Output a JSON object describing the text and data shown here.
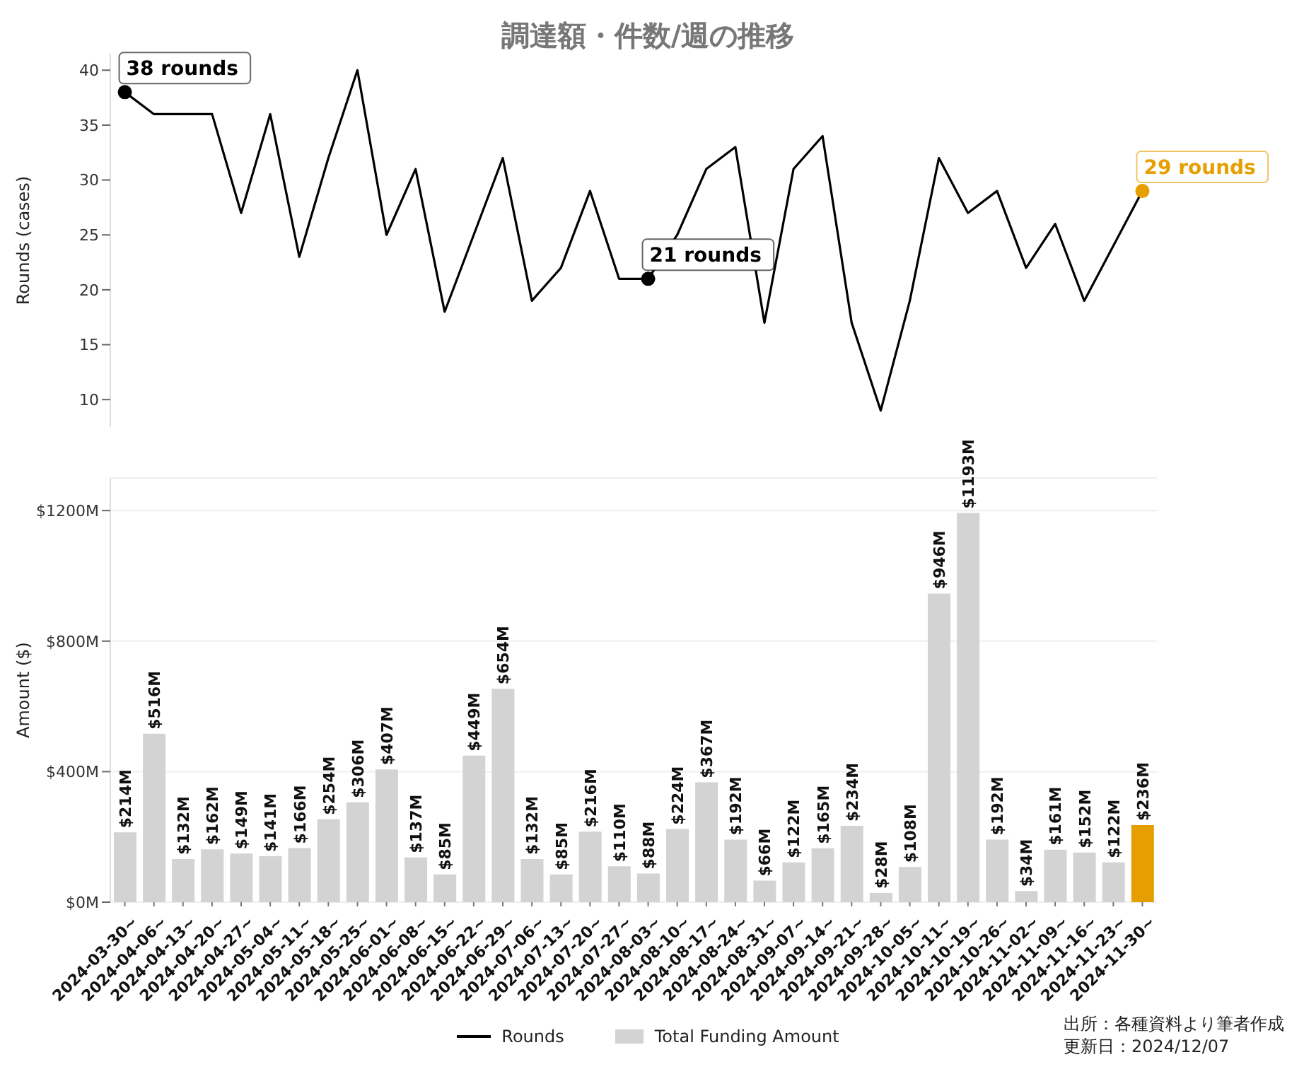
{
  "chart_data": [
    {
      "type": "line",
      "title": "調達額・件数/週の推移",
      "ylabel": "Rounds (cases)",
      "categories": [
        "2024-03-30~",
        "2024-04-06~",
        "2024-04-13~",
        "2024-04-20~",
        "2024-04-27~",
        "2024-05-04~",
        "2024-05-11~",
        "2024-05-18~",
        "2024-05-25~",
        "2024-06-01~",
        "2024-06-08~",
        "2024-06-15~",
        "2024-06-22~",
        "2024-06-29~",
        "2024-07-06~",
        "2024-07-13~",
        "2024-07-20~",
        "2024-07-27~",
        "2024-08-03~",
        "2024-08-10~",
        "2024-08-17~",
        "2024-08-24~",
        "2024-08-31~",
        "2024-09-07~",
        "2024-09-14~",
        "2024-09-21~",
        "2024-09-28~",
        "2024-10-05~",
        "2024-10-11~",
        "2024-10-19~",
        "2024-10-26~",
        "2024-11-02~",
        "2024-11-09~",
        "2024-11-16~",
        "2024-11-23~",
        "2024-11-30~"
      ],
      "series": [
        {
          "name": "Rounds",
          "color": "#000000",
          "values": [
            38,
            36,
            36,
            36,
            27,
            36,
            23,
            32,
            40,
            25,
            31,
            18,
            25,
            32,
            19,
            22,
            29,
            21,
            21,
            25,
            31,
            33,
            17,
            31,
            34,
            17,
            9,
            19,
            32,
            27,
            29,
            22,
            26,
            19,
            24,
            29
          ]
        }
      ],
      "ylim": [
        7.5,
        41.5
      ],
      "yticks": [
        10,
        15,
        20,
        25,
        30,
        35,
        40
      ],
      "tick_labels": "y",
      "grid": false,
      "marker": "none",
      "line_style": "solid",
      "legend": "bottom",
      "annotations": [
        {
          "text": "38 rounds",
          "x": "2024-03-30~",
          "y": 38
        },
        {
          "text": "21 rounds",
          "x": "2024-08-03~",
          "y": 21
        },
        {
          "text": "29 rounds",
          "x": "2024-11-30~",
          "y": 29
        }
      ]
    },
    {
      "type": "bar",
      "ylabel": "Amount ($)",
      "categories": [
        "2024-03-30~",
        "2024-04-06~",
        "2024-04-13~",
        "2024-04-20~",
        "2024-04-27~",
        "2024-05-04~",
        "2024-05-11~",
        "2024-05-18~",
        "2024-05-25~",
        "2024-06-01~",
        "2024-06-08~",
        "2024-06-15~",
        "2024-06-22~",
        "2024-06-29~",
        "2024-07-06~",
        "2024-07-13~",
        "2024-07-20~",
        "2024-07-27~",
        "2024-08-03~",
        "2024-08-10~",
        "2024-08-17~",
        "2024-08-24~",
        "2024-08-31~",
        "2024-09-07~",
        "2024-09-14~",
        "2024-09-21~",
        "2024-09-28~",
        "2024-10-05~",
        "2024-10-11~",
        "2024-10-19~",
        "2024-10-26~",
        "2024-11-02~",
        "2024-11-09~",
        "2024-11-16~",
        "2024-11-23~",
        "2024-11-30~"
      ],
      "series": [
        {
          "name": "Total Funding Amount",
          "color": "#d3d3d3",
          "colors": [
            "#d3d3d3",
            "#d3d3d3",
            "#d3d3d3",
            "#d3d3d3",
            "#d3d3d3",
            "#d3d3d3",
            "#d3d3d3",
            "#d3d3d3",
            "#d3d3d3",
            "#d3d3d3",
            "#d3d3d3",
            "#d3d3d3",
            "#d3d3d3",
            "#d3d3d3",
            "#d3d3d3",
            "#d3d3d3",
            "#d3d3d3",
            "#d3d3d3",
            "#d3d3d3",
            "#d3d3d3",
            "#d3d3d3",
            "#d3d3d3",
            "#d3d3d3",
            "#d3d3d3",
            "#d3d3d3",
            "#d3d3d3",
            "#d3d3d3",
            "#d3d3d3",
            "#d3d3d3",
            "#d3d3d3",
            "#d3d3d3",
            "#d3d3d3",
            "#d3d3d3",
            "#d3d3d3",
            "#d3d3d3",
            "#e69f00"
          ],
          "values": [
            214,
            516,
            132,
            162,
            149,
            141,
            166,
            254,
            306,
            407,
            137,
            85,
            449,
            654,
            132,
            85,
            216,
            110,
            88,
            224,
            367,
            192,
            66,
            122,
            165,
            234,
            28,
            108,
            946,
            1193,
            192,
            34,
            161,
            152,
            122,
            236
          ],
          "value_labels": [
            "$214M",
            "$516M",
            "$132M",
            "$162M",
            "$149M",
            "$141M",
            "$166M",
            "$254M",
            "$306M",
            "$407M",
            "$137M",
            "$85M",
            "$449M",
            "$654M",
            "$132M",
            "$85M",
            "$216M",
            "$110M",
            "$88M",
            "$224M",
            "$367M",
            "$192M",
            "$66M",
            "$122M",
            "$165M",
            "$234M",
            "$28M",
            "$108M",
            "$946M",
            "$1193M",
            "$192M",
            "$34M",
            "$161M",
            "$152M",
            "$122M",
            "$236M"
          ]
        }
      ],
      "ylim": [
        0,
        1300
      ],
      "yticks": [
        {
          "value": 0,
          "label": "$0M"
        },
        {
          "value": 400,
          "label": "$400M"
        },
        {
          "value": 800,
          "label": "$800M"
        },
        {
          "value": 1200,
          "label": "$1200M"
        }
      ],
      "grid": "y",
      "legend": "bottom",
      "annotations": [
        "出所：各種資料より筆者作成",
        "更新日：2024/12/07"
      ]
    }
  ]
}
